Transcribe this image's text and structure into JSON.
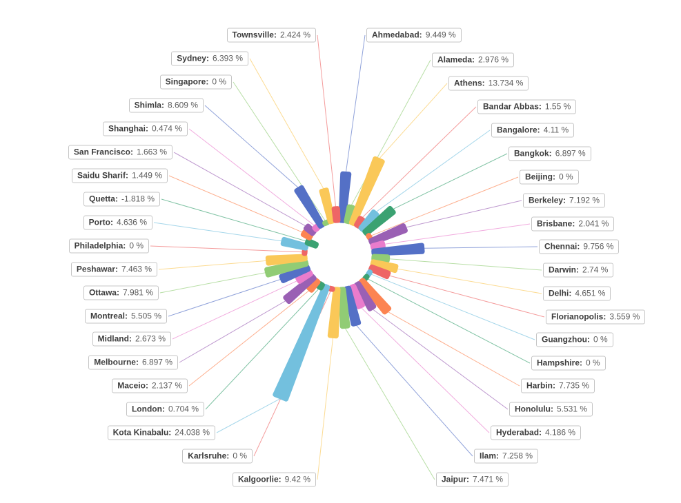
{
  "chart_data": {
    "type": "bar",
    "variant": "polar-rose-radial-bars",
    "title": "",
    "unit": "%",
    "legend_position": "none",
    "grid": false,
    "palette": [
      "#5470c6",
      "#91cc75",
      "#fac858",
      "#ee6666",
      "#73c0de",
      "#3ba272",
      "#fc8452",
      "#9a60b4",
      "#ea7ccc"
    ],
    "categories": [
      "Ahmedabad",
      "Alameda",
      "Athens",
      "Bandar Abbas",
      "Bangalore",
      "Bangkok",
      "Beijing",
      "Berkeley",
      "Brisbane",
      "Chennai",
      "Darwin",
      "Delhi",
      "Florianopolis",
      "Guangzhou",
      "Hampshire",
      "Harbin",
      "Honolulu",
      "Hyderabad",
      "Ilam",
      "Jaipur",
      "Kalgoorlie",
      "Karlsruhe",
      "Kota Kinabalu",
      "London",
      "Maceio",
      "Melbourne",
      "Midland",
      "Montreal",
      "Ottawa",
      "Peshawar",
      "Philadelphia",
      "Porto",
      "Quetta",
      "Saidu Sharif",
      "San Francisco",
      "Shanghai",
      "Shimla",
      "Singapore",
      "Sydney",
      "Townsville"
    ],
    "values": [
      9.449,
      2.976,
      13.734,
      1.55,
      4.11,
      6.897,
      0,
      7.192,
      2.041,
      9.756,
      2.74,
      4.651,
      3.559,
      0,
      0,
      7.735,
      5.531,
      4.186,
      7.258,
      7.471,
      9.42,
      0,
      24.038,
      0.704,
      2.137,
      6.897,
      2.673,
      5.505,
      7.981,
      7.463,
      0,
      4.636,
      -1.818,
      1.449,
      1.663,
      0.474,
      8.609,
      0,
      6.393,
      2.424
    ]
  }
}
